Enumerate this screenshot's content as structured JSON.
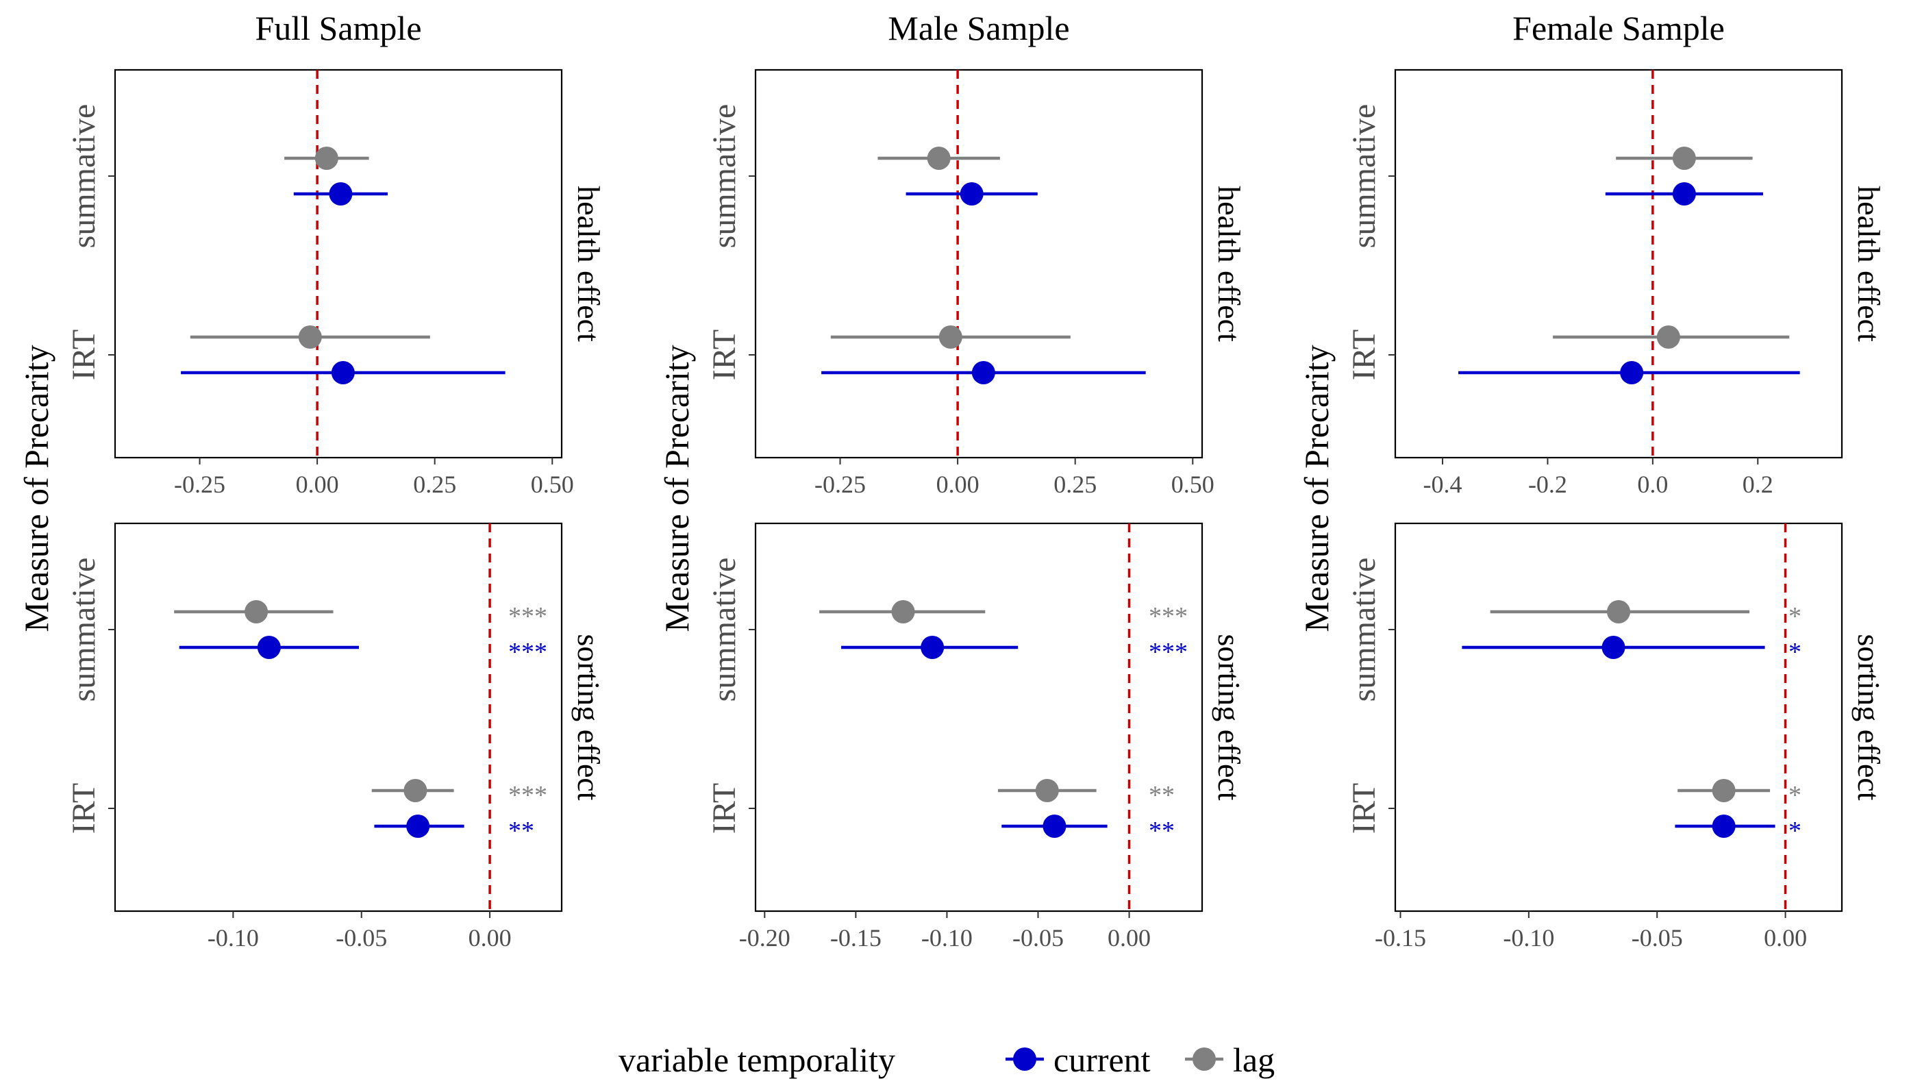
{
  "chart_data": {
    "type": "scatter",
    "y_axis_label": "Measure of Precarity",
    "categories": [
      "summative",
      "IRT"
    ],
    "reference_line": {
      "x": 0,
      "color": "#cc0000",
      "style": "dashed"
    },
    "colors": {
      "current": "#0000cc",
      "lag": "#808080"
    },
    "legend": {
      "title": "variable temporality",
      "position": "bottom",
      "items": [
        {
          "key": "current",
          "label": "current",
          "color": "#0000cc"
        },
        {
          "key": "lag",
          "label": "lag",
          "color": "#808080"
        }
      ]
    },
    "facets": [
      {
        "title": "Full Sample",
        "panels": [
          {
            "effect": "health effect",
            "xlim": [
              -0.43,
              0.52
            ],
            "ticks": [
              -0.25,
              0.0,
              0.25,
              0.5
            ],
            "tick_labels": [
              "-0.25",
              "0.00",
              "0.25",
              "0.50"
            ],
            "points": [
              {
                "category": "summative",
                "series": "lag",
                "estimate": 0.02,
                "low": -0.07,
                "high": 0.11,
                "sig": ""
              },
              {
                "category": "summative",
                "series": "current",
                "estimate": 0.05,
                "low": -0.05,
                "high": 0.15,
                "sig": ""
              },
              {
                "category": "IRT",
                "series": "lag",
                "estimate": -0.015,
                "low": -0.27,
                "high": 0.24,
                "sig": ""
              },
              {
                "category": "IRT",
                "series": "current",
                "estimate": 0.055,
                "low": -0.29,
                "high": 0.4,
                "sig": ""
              }
            ]
          },
          {
            "effect": "sorting effect",
            "xlim": [
              -0.146,
              0.028
            ],
            "ticks": [
              -0.1,
              -0.05,
              0.0
            ],
            "tick_labels": [
              "-0.10",
              "-0.05",
              "0.00"
            ],
            "points": [
              {
                "category": "summative",
                "series": "lag",
                "estimate": -0.091,
                "low": -0.123,
                "high": -0.061,
                "sig": "***"
              },
              {
                "category": "summative",
                "series": "current",
                "estimate": -0.086,
                "low": -0.121,
                "high": -0.051,
                "sig": "***"
              },
              {
                "category": "IRT",
                "series": "lag",
                "estimate": -0.029,
                "low": -0.046,
                "high": -0.014,
                "sig": "***"
              },
              {
                "category": "IRT",
                "series": "current",
                "estimate": -0.028,
                "low": -0.045,
                "high": -0.01,
                "sig": "**"
              }
            ]
          }
        ]
      },
      {
        "title": "Male Sample",
        "panels": [
          {
            "effect": "health effect",
            "xlim": [
              -0.43,
              0.52
            ],
            "ticks": [
              -0.25,
              0.0,
              0.25,
              0.5
            ],
            "tick_labels": [
              "-0.25",
              "0.00",
              "0.25",
              "0.50"
            ],
            "points": [
              {
                "category": "summative",
                "series": "lag",
                "estimate": -0.04,
                "low": -0.17,
                "high": 0.09,
                "sig": ""
              },
              {
                "category": "summative",
                "series": "current",
                "estimate": 0.03,
                "low": -0.11,
                "high": 0.17,
                "sig": ""
              },
              {
                "category": "IRT",
                "series": "lag",
                "estimate": -0.015,
                "low": -0.27,
                "high": 0.24,
                "sig": ""
              },
              {
                "category": "IRT",
                "series": "current",
                "estimate": 0.055,
                "low": -0.29,
                "high": 0.4,
                "sig": ""
              }
            ]
          },
          {
            "effect": "sorting effect",
            "xlim": [
              -0.205,
              0.04
            ],
            "ticks": [
              -0.2,
              -0.15,
              -0.1,
              -0.05,
              0.0
            ],
            "tick_labels": [
              "-0.20",
              "-0.15",
              "-0.10",
              "-0.05",
              "0.00"
            ],
            "points": [
              {
                "category": "summative",
                "series": "lag",
                "estimate": -0.124,
                "low": -0.17,
                "high": -0.079,
                "sig": "***"
              },
              {
                "category": "summative",
                "series": "current",
                "estimate": -0.108,
                "low": -0.158,
                "high": -0.061,
                "sig": "***"
              },
              {
                "category": "IRT",
                "series": "lag",
                "estimate": -0.045,
                "low": -0.072,
                "high": -0.018,
                "sig": "**"
              },
              {
                "category": "IRT",
                "series": "current",
                "estimate": -0.041,
                "low": -0.07,
                "high": -0.012,
                "sig": "**"
              }
            ]
          }
        ]
      },
      {
        "title": "Female Sample",
        "panels": [
          {
            "effect": "health effect",
            "xlim": [
              -0.49,
              0.36
            ],
            "ticks": [
              -0.4,
              -0.2,
              0.0,
              0.2
            ],
            "tick_labels": [
              "-0.4",
              "-0.2",
              "0.0",
              "0.2"
            ],
            "points": [
              {
                "category": "summative",
                "series": "lag",
                "estimate": 0.06,
                "low": -0.07,
                "high": 0.19,
                "sig": ""
              },
              {
                "category": "summative",
                "series": "current",
                "estimate": 0.06,
                "low": -0.09,
                "high": 0.21,
                "sig": ""
              },
              {
                "category": "IRT",
                "series": "lag",
                "estimate": 0.03,
                "low": -0.19,
                "high": 0.26,
                "sig": ""
              },
              {
                "category": "IRT",
                "series": "current",
                "estimate": -0.04,
                "low": -0.37,
                "high": 0.28,
                "sig": ""
              }
            ]
          },
          {
            "effect": "sorting effect",
            "xlim": [
              -0.152,
              0.022
            ],
            "ticks": [
              -0.15,
              -0.1,
              -0.05,
              0.0
            ],
            "tick_labels": [
              "-0.15",
              "-0.10",
              "-0.05",
              "0.00"
            ],
            "points": [
              {
                "category": "summative",
                "series": "lag",
                "estimate": -0.065,
                "low": -0.115,
                "high": -0.014,
                "sig": "*"
              },
              {
                "category": "summative",
                "series": "current",
                "estimate": -0.067,
                "low": -0.126,
                "high": -0.008,
                "sig": "*"
              },
              {
                "category": "IRT",
                "series": "lag",
                "estimate": -0.024,
                "low": -0.042,
                "high": -0.006,
                "sig": "*"
              },
              {
                "category": "IRT",
                "series": "current",
                "estimate": -0.024,
                "low": -0.043,
                "high": -0.004,
                "sig": "*"
              }
            ]
          }
        ]
      }
    ]
  }
}
